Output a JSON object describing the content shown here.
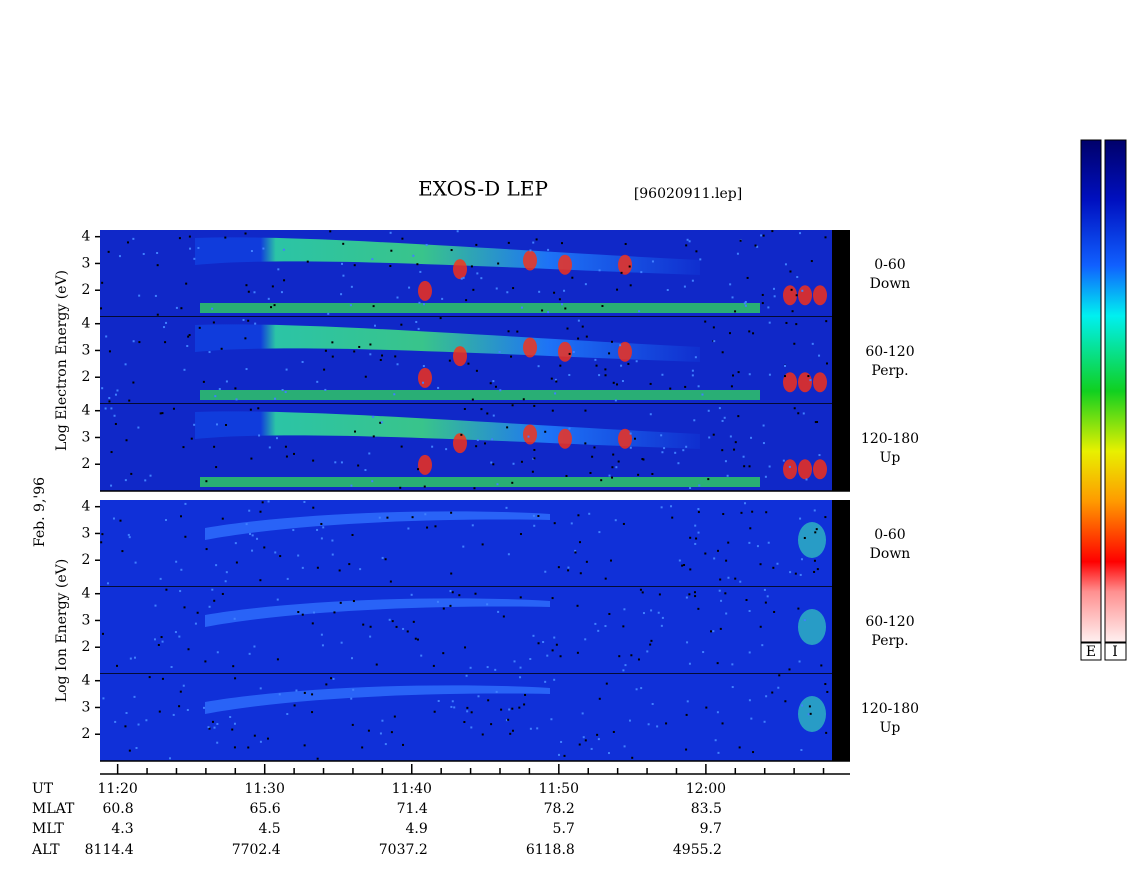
{
  "chart_data": {
    "type": "spectrogram",
    "title": "EXOS-D LEP",
    "file_label": "[96020911.lep]",
    "date_label": "Feb. 9,'96",
    "ylim": [
      1,
      4.25
    ],
    "yticks": [
      2,
      3,
      4
    ],
    "xlim": [
      678.8,
      729.8
    ],
    "xticks": [
      {
        "value": 680,
        "label": "11:20"
      },
      {
        "value": 690,
        "label": "11:30"
      },
      {
        "value": 700,
        "label": "11:40"
      },
      {
        "value": 710,
        "label": "11:50"
      },
      {
        "value": 720,
        "label": "12:00"
      }
    ],
    "xminorticks": [
      682,
      684,
      686,
      688,
      692,
      694,
      696,
      698,
      702,
      704,
      706,
      708,
      712,
      714,
      716,
      718,
      722,
      724,
      726,
      728
    ],
    "groups": [
      {
        "ylabel": "Log Electron Energy (eV)",
        "panels": [
          {
            "angle": "0-60",
            "direction": "Down"
          },
          {
            "angle": "60-120",
            "direction": "Perp."
          },
          {
            "angle": "120-180",
            "direction": "Up"
          }
        ]
      },
      {
        "ylabel": "Log Ion Energy (eV)",
        "panels": [
          {
            "angle": "0-60",
            "direction": "Down"
          },
          {
            "angle": "60-120",
            "direction": "Perp."
          },
          {
            "angle": "120-180",
            "direction": "Up"
          }
        ]
      }
    ],
    "ephemeris": [
      {
        "name": "UT"
      },
      {
        "name": "MLAT",
        "values": [
          60.8,
          65.6,
          71.4,
          78.2,
          83.5
        ]
      },
      {
        "name": "MLT",
        "values": [
          4.3,
          4.5,
          4.9,
          5.7,
          9.7
        ]
      },
      {
        "name": "ALT",
        "values": [
          8114.4,
          7702.4,
          7037.2,
          6118.8,
          4955.2
        ]
      }
    ],
    "colorbar_labels": [
      "E",
      "I"
    ]
  }
}
